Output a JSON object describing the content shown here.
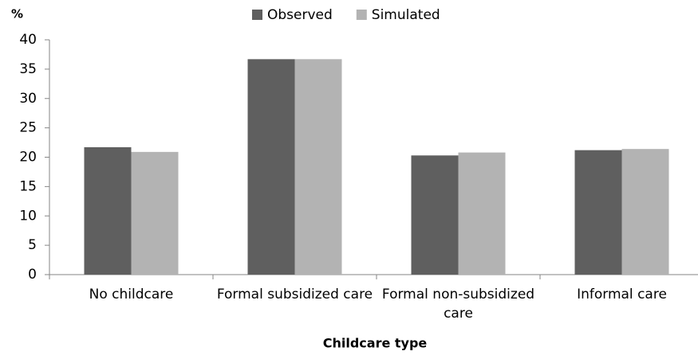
{
  "chart_data": {
    "type": "bar",
    "y_axis_label": "%",
    "x_axis_label": "Childcare type",
    "categories": [
      "No childcare",
      "Formal subsidized care",
      "Formal non-subsidized care",
      "Informal care"
    ],
    "series": [
      {
        "name": "Observed",
        "color": "#5f5f5f",
        "values": [
          21.7,
          36.7,
          20.3,
          21.2
        ]
      },
      {
        "name": "Simulated",
        "color": "#b3b3b3",
        "values": [
          20.9,
          36.7,
          20.8,
          21.4
        ]
      }
    ],
    "ylim": [
      0,
      40
    ],
    "yticks": [
      0,
      5,
      10,
      15,
      20,
      25,
      30,
      35,
      40
    ],
    "grid": false,
    "legend": "top"
  }
}
